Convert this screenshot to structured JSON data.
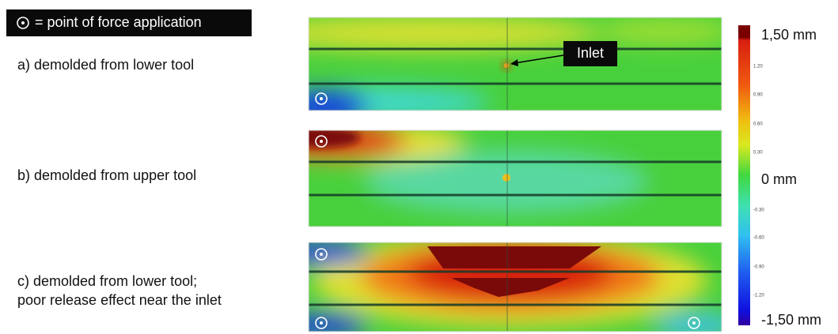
{
  "legend": {
    "text": "= point of force application"
  },
  "panels": [
    {
      "label": "a) demolded from lower tool"
    },
    {
      "label": "b) demolded from upper tool"
    },
    {
      "label": "c) demolded from lower tool;",
      "label_line2": "poor release effect near the inlet"
    }
  ],
  "annotation": "Inlet",
  "colorbar": {
    "max_label": "1,50 mm",
    "mid_label": "0 mm",
    "min_label": "-1,50 mm",
    "ticks": [
      "1.20",
      "0.90",
      "0.60",
      "0.30",
      "-0.30",
      "-0.60",
      "-0.90",
      "-1.20"
    ]
  }
}
